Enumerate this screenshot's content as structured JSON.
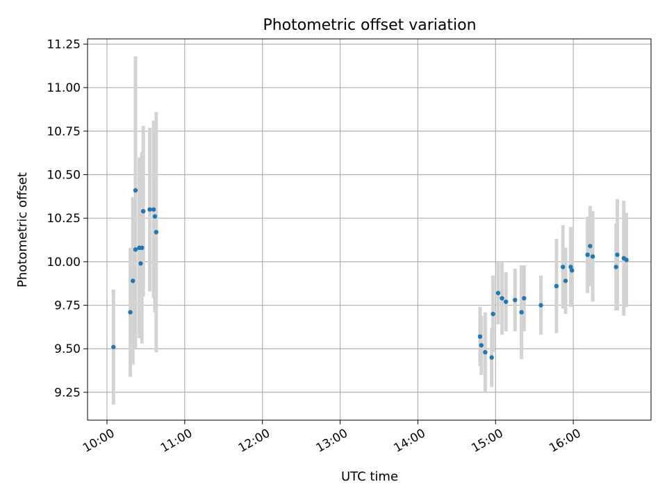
{
  "chart_data": {
    "type": "scatter",
    "title": "Photometric offset variation",
    "xlabel": "UTC time",
    "ylabel": "Photometric offset",
    "x_ticks": [
      "10:00",
      "11:00",
      "12:00",
      "13:00",
      "14:00",
      "15:00",
      "16:00"
    ],
    "y_ticks": [
      "9.25",
      "9.50",
      "9.75",
      "10.00",
      "10.25",
      "10.50",
      "10.75",
      "11.00",
      "11.25"
    ],
    "xlim": [
      "09:45",
      "17:00"
    ],
    "ylim": [
      9.09,
      11.28
    ],
    "grid": true,
    "series": [
      {
        "marker_color": "#1f77b4",
        "errorbar_color": "#d3d3d3",
        "points": [
          {
            "t": "10:05",
            "y": 9.51,
            "err": 0.33
          },
          {
            "t": "10:18",
            "y": 9.71,
            "err": 0.37
          },
          {
            "t": "10:20",
            "y": 9.89,
            "err": 0.48
          },
          {
            "t": "10:22",
            "y": 10.07,
            "err": 0.57
          },
          {
            "t": "10:22",
            "y": 10.41,
            "err": 0.77
          },
          {
            "t": "10:25",
            "y": 10.08,
            "err": 0.52
          },
          {
            "t": "10:26",
            "y": 9.99,
            "err": 0.43
          },
          {
            "t": "10:27",
            "y": 10.08,
            "err": 0.55
          },
          {
            "t": "10:28",
            "y": 10.29,
            "err": 0.49
          },
          {
            "t": "10:33",
            "y": 10.3,
            "err": 0.47
          },
          {
            "t": "10:36",
            "y": 10.3,
            "err": 0.51
          },
          {
            "t": "10:37",
            "y": 10.26,
            "err": 0.55
          },
          {
            "t": "10:38",
            "y": 10.17,
            "err": 0.69
          },
          {
            "t": "14:48",
            "y": 9.57,
            "err": 0.17
          },
          {
            "t": "14:49",
            "y": 9.52,
            "err": 0.17
          },
          {
            "t": "14:52",
            "y": 9.48,
            "err": 0.23
          },
          {
            "t": "14:57",
            "y": 9.45,
            "err": 0.17
          },
          {
            "t": "14:58",
            "y": 9.7,
            "err": 0.22
          },
          {
            "t": "15:02",
            "y": 9.82,
            "err": 0.18
          },
          {
            "t": "15:05",
            "y": 9.79,
            "err": 0.21
          },
          {
            "t": "15:08",
            "y": 9.77,
            "err": 0.17
          },
          {
            "t": "15:15",
            "y": 9.78,
            "err": 0.18
          },
          {
            "t": "15:20",
            "y": 9.71,
            "err": 0.27
          },
          {
            "t": "15:22",
            "y": 9.79,
            "err": 0.19
          },
          {
            "t": "15:35",
            "y": 9.75,
            "err": 0.17
          },
          {
            "t": "15:47",
            "y": 9.86,
            "err": 0.27
          },
          {
            "t": "15:52",
            "y": 9.97,
            "err": 0.24
          },
          {
            "t": "15:54",
            "y": 9.89,
            "err": 0.19
          },
          {
            "t": "15:58",
            "y": 9.97,
            "err": 0.23
          },
          {
            "t": "15:59",
            "y": 9.95,
            "err": 0.2
          },
          {
            "t": "16:11",
            "y": 10.04,
            "err": 0.22
          },
          {
            "t": "16:13",
            "y": 10.09,
            "err": 0.23
          },
          {
            "t": "16:15",
            "y": 10.03,
            "err": 0.26
          },
          {
            "t": "16:33",
            "y": 9.97,
            "err": 0.25
          },
          {
            "t": "16:34",
            "y": 10.04,
            "err": 0.32
          },
          {
            "t": "16:39",
            "y": 10.02,
            "err": 0.33
          },
          {
            "t": "16:41",
            "y": 10.01,
            "err": 0.27
          }
        ]
      }
    ]
  }
}
